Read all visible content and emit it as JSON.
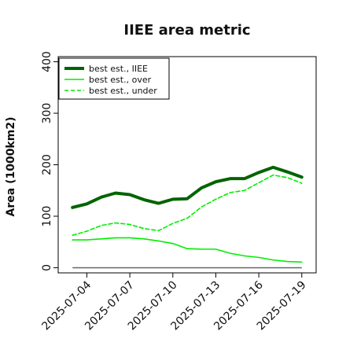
{
  "chart_data": {
    "type": "line",
    "title": "IIEE area metric",
    "xlabel": "",
    "ylabel": "Area (1000km2)",
    "x": [
      "2025-07-03",
      "2025-07-04",
      "2025-07-05",
      "2025-07-06",
      "2025-07-07",
      "2025-07-08",
      "2025-07-09",
      "2025-07-10",
      "2025-07-11",
      "2025-07-12",
      "2025-07-13",
      "2025-07-14",
      "2025-07-15",
      "2025-07-16",
      "2025-07-17",
      "2025-07-18",
      "2025-07-19"
    ],
    "xticks": [
      "2025-07-04",
      "2025-07-07",
      "2025-07-10",
      "2025-07-13",
      "2025-07-16",
      "2025-07-19"
    ],
    "xlim": [
      "2025-07-02",
      "2025-07-20"
    ],
    "ylim": [
      -10,
      410
    ],
    "yticks": [
      0,
      100,
      200,
      300,
      400
    ],
    "grid": false,
    "legend_position": "top-left",
    "series": [
      {
        "name": "best est., IIEE",
        "color": "#006400",
        "style": "solid",
        "width": "thick",
        "values": [
          117,
          124,
          137,
          145,
          142,
          132,
          125,
          133,
          134,
          155,
          167,
          173,
          173,
          185,
          195,
          186,
          176
        ]
      },
      {
        "name": "best est., over",
        "color": "#00ee00",
        "style": "solid",
        "width": "thin",
        "values": [
          54,
          54,
          56,
          58,
          58,
          56,
          52,
          47,
          37,
          36,
          36,
          28,
          23,
          20,
          15,
          12,
          11
        ]
      },
      {
        "name": "best est., under",
        "color": "#00ee00",
        "style": "dashed",
        "width": "thin",
        "values": [
          63,
          71,
          82,
          87,
          84,
          76,
          72,
          86,
          96,
          118,
          133,
          146,
          150,
          165,
          180,
          175,
          164
        ]
      }
    ],
    "reference_line": {
      "value": 0,
      "color": "#666666"
    }
  }
}
